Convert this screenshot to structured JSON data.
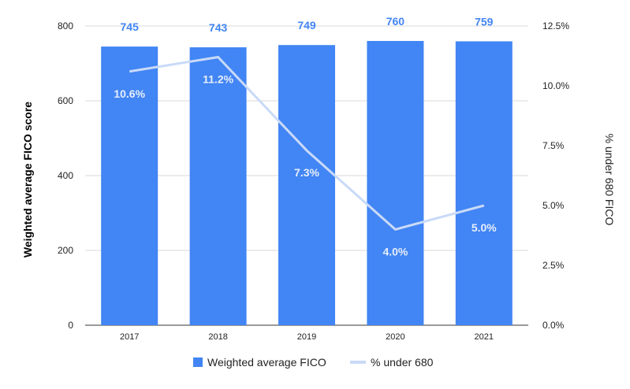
{
  "chart_data": {
    "type": "bar",
    "categories": [
      "2017",
      "2018",
      "2019",
      "2020",
      "2021"
    ],
    "series": [
      {
        "name": "Weighted average FICO",
        "type": "bar",
        "axis": "left",
        "values": [
          745,
          743,
          749,
          760,
          759
        ],
        "labels": [
          "745",
          "743",
          "749",
          "760",
          "759"
        ],
        "color": "#4285f4"
      },
      {
        "name": "% under 680",
        "type": "line",
        "axis": "right",
        "values": [
          10.6,
          11.2,
          7.3,
          4.0,
          5.0
        ],
        "labels": [
          "10.6%",
          "11.2%",
          "7.3%",
          "4.0%",
          "5.0%"
        ],
        "color": "#c9daf8"
      }
    ],
    "ylabel": "Weighted average FICO score",
    "y2label": "% under 680 FICO",
    "ylim": [
      0,
      800
    ],
    "y2lim": [
      0,
      12.5
    ],
    "yticks": [
      "0",
      "200",
      "400",
      "600",
      "800"
    ],
    "y2ticks": [
      "0.0%",
      "2.5%",
      "5.0%",
      "7.5%",
      "10.0%",
      "12.5%"
    ],
    "grid": true,
    "legend": "bottom"
  }
}
